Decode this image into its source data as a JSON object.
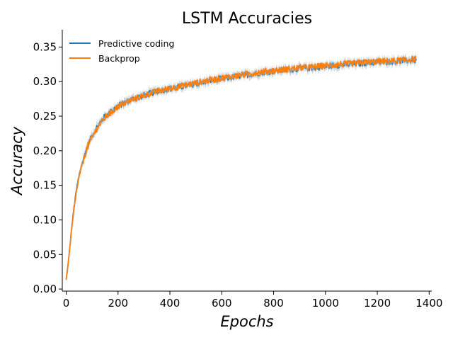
{
  "chart_data": {
    "type": "line",
    "title": "LSTM Accuracies",
    "xlabel": "Epochs",
    "ylabel": "Accuracy",
    "xlim": [
      -15,
      1410
    ],
    "ylim": [
      -0.003,
      0.375
    ],
    "x_ticks": [
      0,
      200,
      400,
      600,
      800,
      1000,
      1200,
      1400
    ],
    "y_ticks": [
      0.0,
      0.05,
      0.1,
      0.15,
      0.2,
      0.25,
      0.3,
      0.35
    ],
    "x_tick_labels": [
      "0",
      "200",
      "400",
      "600",
      "800",
      "1000",
      "1200",
      "1400"
    ],
    "y_tick_labels": [
      "0.00",
      "0.05",
      "0.10",
      "0.15",
      "0.20",
      "0.25",
      "0.30",
      "0.35"
    ],
    "grid": false,
    "legend_position": "top-left",
    "x": [
      0,
      10,
      20,
      30,
      40,
      50,
      60,
      80,
      100,
      120,
      150,
      200,
      250,
      300,
      350,
      400,
      450,
      500,
      550,
      600,
      650,
      700,
      750,
      800,
      850,
      900,
      950,
      1000,
      1050,
      1100,
      1150,
      1200,
      1250,
      1300,
      1350
    ],
    "series": [
      {
        "name": "Predictive coding",
        "color": "#1f77b4",
        "values": [
          0.013,
          0.045,
          0.085,
          0.118,
          0.145,
          0.165,
          0.18,
          0.205,
          0.222,
          0.235,
          0.25,
          0.265,
          0.274,
          0.28,
          0.286,
          0.29,
          0.293,
          0.297,
          0.301,
          0.304,
          0.307,
          0.31,
          0.313,
          0.315,
          0.317,
          0.319,
          0.32,
          0.322,
          0.324,
          0.325,
          0.327,
          0.328,
          0.329,
          0.33,
          0.331
        ]
      },
      {
        "name": "Backprop",
        "color": "#ff7f0e",
        "values": [
          0.013,
          0.043,
          0.082,
          0.115,
          0.142,
          0.162,
          0.178,
          0.203,
          0.22,
          0.233,
          0.248,
          0.264,
          0.273,
          0.28,
          0.286,
          0.29,
          0.294,
          0.298,
          0.302,
          0.305,
          0.308,
          0.311,
          0.314,
          0.316,
          0.318,
          0.32,
          0.321,
          0.323,
          0.325,
          0.326,
          0.328,
          0.329,
          0.33,
          0.331,
          0.333
        ]
      }
    ]
  }
}
